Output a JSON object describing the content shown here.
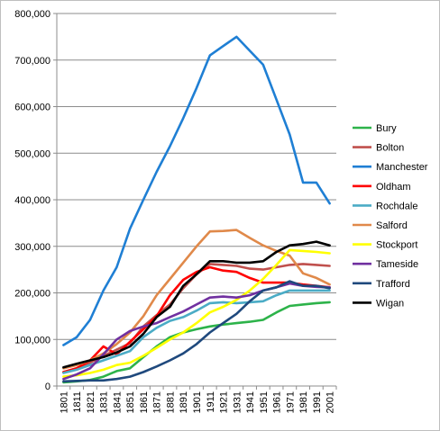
{
  "chart_data": {
    "type": "line",
    "title": "",
    "xlabel": "",
    "ylabel": "",
    "x": [
      "1801",
      "1811",
      "1821",
      "1831",
      "1841",
      "1851",
      "1861",
      "1871",
      "1881",
      "1891",
      "1901",
      "1911",
      "1921",
      "1931",
      "1941",
      "1951",
      "1961",
      "1971",
      "1981",
      "1991",
      "2001"
    ],
    "ylim": [
      0,
      800000
    ],
    "yticks": [
      0,
      100000,
      200000,
      300000,
      400000,
      500000,
      600000,
      700000,
      800000
    ],
    "ytick_labels": [
      "0",
      "100,000",
      "200,000",
      "300,000",
      "400,000",
      "500,000",
      "600,000",
      "700,000",
      "800,000"
    ],
    "grid": "horizontal",
    "legend_position": "right",
    "series": [
      {
        "name": "Bury",
        "color": "#2db34a",
        "values": [
          8000,
          10000,
          13000,
          20000,
          32000,
          38000,
          62000,
          85000,
          105000,
          115000,
          122000,
          128000,
          132000,
          135000,
          138000,
          142000,
          158000,
          172000,
          175000,
          178000,
          180000
        ]
      },
      {
        "name": "Bolton",
        "color": "#c0504d",
        "values": [
          30000,
          38000,
          50000,
          65000,
          78000,
          92000,
          128000,
          152000,
          175000,
          210000,
          240000,
          262000,
          260000,
          258000,
          252000,
          250000,
          255000,
          260000,
          262000,
          260000,
          258000
        ]
      },
      {
        "name": "Manchester",
        "color": "#1f7fd4",
        "values": [
          88000,
          105000,
          142000,
          205000,
          255000,
          338000,
          400000,
          460000,
          515000,
          575000,
          640000,
          710000,
          730000,
          750000,
          720000,
          690000,
          615000,
          540000,
          437000,
          437000,
          392000
        ]
      },
      {
        "name": "Oldham",
        "color": "#ff0000",
        "values": [
          30000,
          38000,
          55000,
          85000,
          68000,
          95000,
          122000,
          150000,
          195000,
          228000,
          245000,
          255000,
          248000,
          245000,
          232000,
          222000,
          222000,
          222000,
          218000,
          215000,
          212000
        ]
      },
      {
        "name": "Rochdale",
        "color": "#4bacc6",
        "values": [
          28000,
          35000,
          45000,
          55000,
          65000,
          75000,
          105000,
          125000,
          140000,
          148000,
          162000,
          178000,
          180000,
          178000,
          180000,
          182000,
          195000,
          205000,
          205000,
          205000,
          205000
        ]
      },
      {
        "name": "Salford",
        "color": "#e0894a",
        "values": [
          38000,
          45000,
          55000,
          70000,
          90000,
          115000,
          150000,
          195000,
          230000,
          265000,
          300000,
          332000,
          333000,
          335000,
          318000,
          302000,
          290000,
          280000,
          242000,
          232000,
          218000
        ]
      },
      {
        "name": "Stockport",
        "color": "#ffff00",
        "values": [
          20000,
          23000,
          28000,
          35000,
          45000,
          50000,
          65000,
          82000,
          100000,
          115000,
          135000,
          158000,
          170000,
          185000,
          205000,
          230000,
          260000,
          292000,
          290000,
          288000,
          285000
        ]
      },
      {
        "name": "Tameside",
        "color": "#7030a0",
        "values": [
          15000,
          25000,
          38000,
          68000,
          100000,
          118000,
          128000,
          135000,
          148000,
          160000,
          175000,
          190000,
          192000,
          190000,
          195000,
          205000,
          212000,
          220000,
          215000,
          213000,
          212000
        ]
      },
      {
        "name": "Trafford",
        "color": "#1f497d",
        "values": [
          10000,
          11000,
          12000,
          12000,
          15000,
          20000,
          30000,
          42000,
          55000,
          70000,
          90000,
          115000,
          135000,
          155000,
          182000,
          205000,
          212000,
          225000,
          215000,
          215000,
          210000
        ]
      },
      {
        "name": "Wigan",
        "color": "#000000",
        "values": [
          40000,
          48000,
          55000,
          62000,
          72000,
          85000,
          112000,
          148000,
          170000,
          215000,
          240000,
          268000,
          268000,
          265000,
          265000,
          268000,
          288000,
          302000,
          305000,
          310000,
          302000
        ]
      }
    ]
  }
}
